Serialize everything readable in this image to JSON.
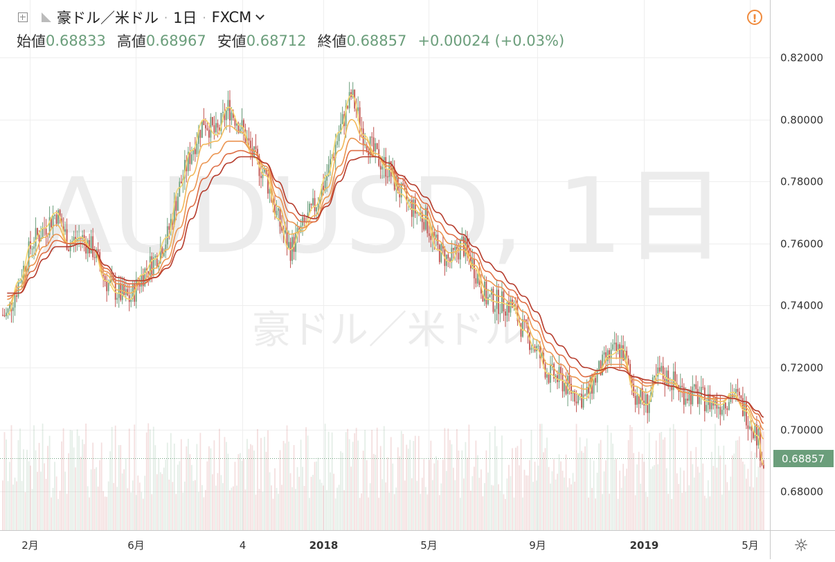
{
  "header": {
    "symbol_name": "豪ドル／米ドル",
    "interval": "1日",
    "source": "FXCM",
    "ohlc": [
      {
        "label": "始値",
        "value": "0.68833"
      },
      {
        "label": "高値",
        "value": "0.68967"
      },
      {
        "label": "安値",
        "value": "0.68712"
      },
      {
        "label": "終値",
        "value": "0.68857"
      }
    ],
    "change": "+0.00024 (+0.03%)"
  },
  "watermark": {
    "line1": "AUDUSD, 1日",
    "line2": "豪ドル／米ドル"
  },
  "icons": {
    "add": "plus-square-icon",
    "warning": "warning-icon",
    "settings": "gear-icon",
    "swatch": "symbol-swatch-icon",
    "dropdown": "chevron-down-icon"
  },
  "warning_glyph": "!",
  "colors": {
    "up": "#6b9e7b",
    "down": "#c0504d",
    "last_price_bg": "#6b9e7b"
  },
  "price_axis": {
    "labels": [
      "0.82000",
      "0.80000",
      "0.78000",
      "0.76000",
      "0.74000",
      "0.72000",
      "0.70000",
      "0.68000"
    ],
    "last_price": "0.68857"
  },
  "time_axis": {
    "labels": [
      "2月",
      "6月",
      "4",
      "2018",
      "5月",
      "9月",
      "2019",
      "5月"
    ]
  },
  "chart_data": {
    "type": "line",
    "title": "",
    "xlabel": "",
    "ylabel": "",
    "ylim": [
      0.6675,
      0.8386
    ],
    "x": [
      "2017-01-06",
      "2017-01-20",
      "2017-02-03",
      "2017-02-17",
      "2017-03-03",
      "2017-03-17",
      "2017-03-31",
      "2017-04-14",
      "2017-04-28",
      "2017-05-12",
      "2017-05-26",
      "2017-06-09",
      "2017-06-23",
      "2017-07-07",
      "2017-07-21",
      "2017-08-04",
      "2017-08-18",
      "2017-09-01",
      "2017-09-15",
      "2017-09-29",
      "2017-10-13",
      "2017-10-27",
      "2017-11-10",
      "2017-11-24",
      "2017-12-08",
      "2017-12-22",
      "2018-01-05",
      "2018-01-19",
      "2018-02-02",
      "2018-02-16",
      "2018-03-02",
      "2018-03-16",
      "2018-03-30",
      "2018-04-13",
      "2018-04-27",
      "2018-05-11",
      "2018-05-25",
      "2018-06-08",
      "2018-06-22",
      "2018-07-06",
      "2018-07-20",
      "2018-08-03",
      "2018-08-17",
      "2018-08-31",
      "2018-09-14",
      "2018-09-28",
      "2018-10-12",
      "2018-10-26",
      "2018-11-09",
      "2018-11-23",
      "2018-12-07",
      "2018-12-21",
      "2019-01-04",
      "2019-01-18",
      "2019-02-01",
      "2019-02-15",
      "2019-03-01",
      "2019-03-15",
      "2019-03-29",
      "2019-04-12",
      "2019-04-26",
      "2019-05-10",
      "2019-05-17"
    ],
    "series": [
      {
        "values": [
          0.737,
          0.748,
          0.76,
          0.765,
          0.77,
          0.76,
          0.762,
          0.758,
          0.748,
          0.744,
          0.742,
          0.75,
          0.755,
          0.762,
          0.778,
          0.79,
          0.8,
          0.795,
          0.804,
          0.798,
          0.788,
          0.782,
          0.768,
          0.758,
          0.765,
          0.772,
          0.782,
          0.796,
          0.808,
          0.795,
          0.788,
          0.784,
          0.776,
          0.771,
          0.768,
          0.758,
          0.754,
          0.76,
          0.752,
          0.742,
          0.741,
          0.74,
          0.732,
          0.726,
          0.718,
          0.716,
          0.712,
          0.71,
          0.718,
          0.724,
          0.726,
          0.712,
          0.708,
          0.718,
          0.716,
          0.712,
          0.711,
          0.709,
          0.708,
          0.712,
          0.706,
          0.698,
          0.6886
        ]
      },
      {
        "values": [
          0.74,
          0.746,
          0.756,
          0.762,
          0.766,
          0.76,
          0.761,
          0.758,
          0.75,
          0.745,
          0.744,
          0.748,
          0.752,
          0.758,
          0.77,
          0.782,
          0.792,
          0.793,
          0.798,
          0.796,
          0.79,
          0.784,
          0.772,
          0.763,
          0.764,
          0.769,
          0.778,
          0.79,
          0.8,
          0.794,
          0.789,
          0.785,
          0.778,
          0.773,
          0.769,
          0.761,
          0.757,
          0.758,
          0.753,
          0.745,
          0.743,
          0.741,
          0.735,
          0.729,
          0.721,
          0.718,
          0.714,
          0.713,
          0.719,
          0.723,
          0.723,
          0.714,
          0.712,
          0.716,
          0.715,
          0.712,
          0.711,
          0.71,
          0.709,
          0.711,
          0.707,
          0.701,
          0.697
        ]
      },
      {
        "values": [
          0.742,
          0.745,
          0.753,
          0.759,
          0.763,
          0.76,
          0.76,
          0.758,
          0.751,
          0.747,
          0.746,
          0.747,
          0.75,
          0.755,
          0.765,
          0.777,
          0.786,
          0.789,
          0.793,
          0.793,
          0.79,
          0.785,
          0.775,
          0.767,
          0.765,
          0.767,
          0.775,
          0.785,
          0.794,
          0.792,
          0.788,
          0.785,
          0.779,
          0.775,
          0.771,
          0.764,
          0.76,
          0.759,
          0.755,
          0.748,
          0.746,
          0.743,
          0.738,
          0.732,
          0.725,
          0.721,
          0.717,
          0.715,
          0.718,
          0.721,
          0.721,
          0.716,
          0.714,
          0.715,
          0.714,
          0.712,
          0.711,
          0.71,
          0.71,
          0.71,
          0.708,
          0.703,
          0.7
        ]
      },
      {
        "values": [
          0.743,
          0.744,
          0.751,
          0.757,
          0.761,
          0.76,
          0.76,
          0.758,
          0.752,
          0.748,
          0.747,
          0.747,
          0.749,
          0.753,
          0.761,
          0.772,
          0.781,
          0.785,
          0.789,
          0.79,
          0.789,
          0.786,
          0.778,
          0.77,
          0.767,
          0.767,
          0.773,
          0.782,
          0.79,
          0.79,
          0.788,
          0.786,
          0.781,
          0.777,
          0.773,
          0.767,
          0.763,
          0.761,
          0.757,
          0.751,
          0.748,
          0.745,
          0.741,
          0.735,
          0.728,
          0.724,
          0.72,
          0.717,
          0.718,
          0.72,
          0.72,
          0.717,
          0.715,
          0.715,
          0.714,
          0.713,
          0.712,
          0.711,
          0.71,
          0.71,
          0.709,
          0.705,
          0.702
        ]
      },
      {
        "values": [
          0.744,
          0.744,
          0.749,
          0.755,
          0.759,
          0.759,
          0.76,
          0.758,
          0.753,
          0.749,
          0.748,
          0.748,
          0.749,
          0.752,
          0.758,
          0.768,
          0.777,
          0.782,
          0.786,
          0.788,
          0.788,
          0.786,
          0.78,
          0.773,
          0.769,
          0.768,
          0.772,
          0.78,
          0.787,
          0.788,
          0.788,
          0.786,
          0.782,
          0.779,
          0.775,
          0.77,
          0.766,
          0.763,
          0.759,
          0.754,
          0.751,
          0.747,
          0.743,
          0.738,
          0.731,
          0.727,
          0.723,
          0.72,
          0.719,
          0.72,
          0.719,
          0.717,
          0.716,
          0.715,
          0.714,
          0.713,
          0.712,
          0.711,
          0.711,
          0.71,
          0.709,
          0.706,
          0.704
        ]
      }
    ]
  }
}
